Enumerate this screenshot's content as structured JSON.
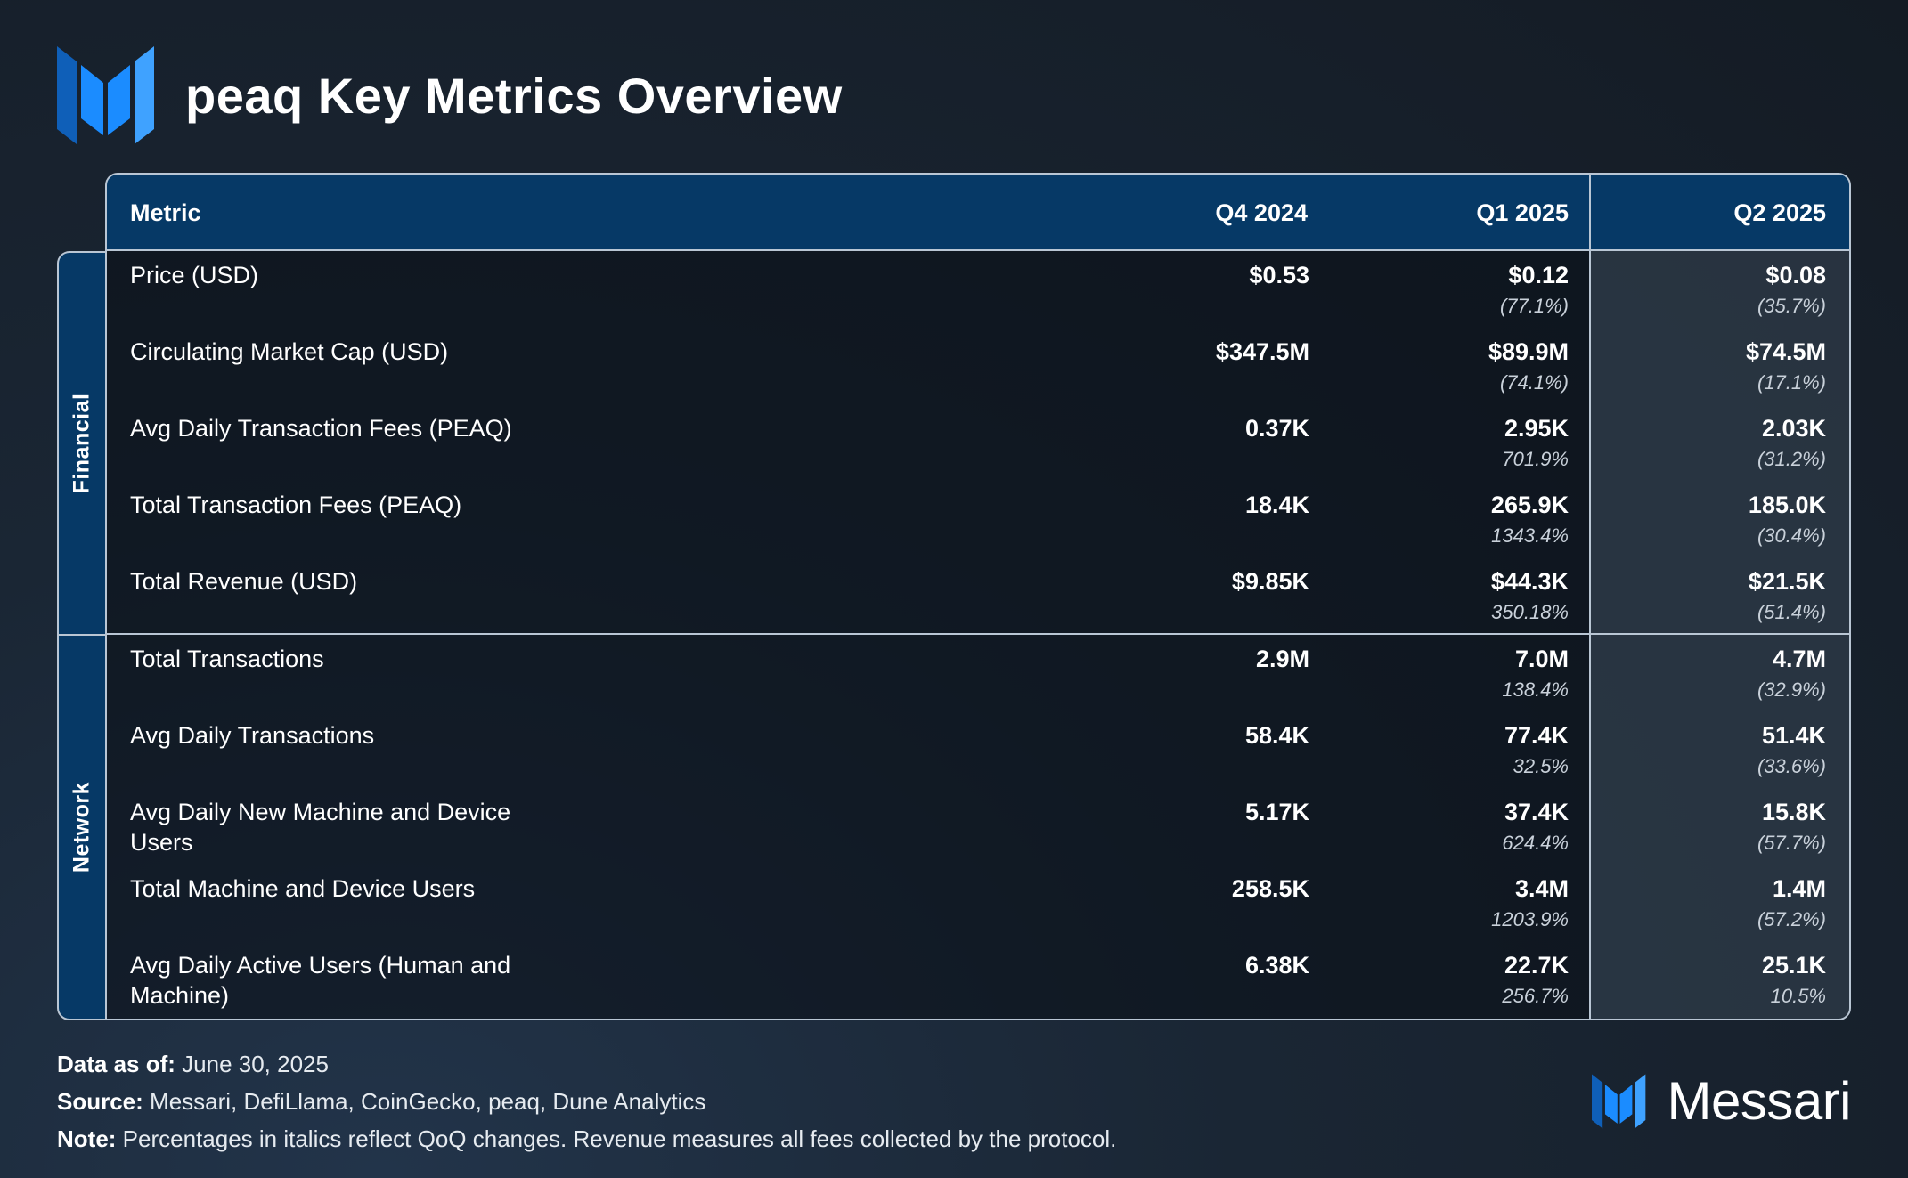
{
  "header": {
    "title": "peaq Key Metrics Overview",
    "logo_icon": "messari-m-logo-icon"
  },
  "colors": {
    "background": "#161e28",
    "header_fill": "#063966",
    "accent_blue": "#1b8cff",
    "border": "#b9c6d4",
    "change_text": "#c9d1da"
  },
  "chart_data": {
    "type": "table",
    "columns": [
      "Metric",
      "Q4 2024",
      "Q1 2025",
      "Q2 2025"
    ],
    "sections": [
      {
        "name": "Financial",
        "rows": [
          {
            "metric": "Price (USD)",
            "q4_2024": "$0.53",
            "q1_2025": "$0.12",
            "q1_2025_change": "(77.1%)",
            "q2_2025": "$0.08",
            "q2_2025_change": "(35.7%)"
          },
          {
            "metric": "Circulating Market Cap (USD)",
            "q4_2024": "$347.5M",
            "q1_2025": "$89.9M",
            "q1_2025_change": "(74.1%)",
            "q2_2025": "$74.5M",
            "q2_2025_change": "(17.1%)"
          },
          {
            "metric": "Avg Daily Transaction Fees (PEAQ)",
            "q4_2024": "0.37K",
            "q1_2025": "2.95K",
            "q1_2025_change": "701.9%",
            "q2_2025": "2.03K",
            "q2_2025_change": "(31.2%)"
          },
          {
            "metric": "Total Transaction Fees (PEAQ)",
            "q4_2024": "18.4K",
            "q1_2025": "265.9K",
            "q1_2025_change": "1343.4%",
            "q2_2025": "185.0K",
            "q2_2025_change": "(30.4%)"
          },
          {
            "metric": "Total Revenue (USD)",
            "q4_2024": "$9.85K",
            "q1_2025": "$44.3K",
            "q1_2025_change": "350.18%",
            "q2_2025": "$21.5K",
            "q2_2025_change": "(51.4%)"
          }
        ]
      },
      {
        "name": "Network",
        "rows": [
          {
            "metric": "Total Transactions",
            "q4_2024": "2.9M",
            "q1_2025": "7.0M",
            "q1_2025_change": "138.4%",
            "q2_2025": "4.7M",
            "q2_2025_change": "(32.9%)"
          },
          {
            "metric": "Avg Daily Transactions",
            "q4_2024": "58.4K",
            "q1_2025": "77.4K",
            "q1_2025_change": "32.5%",
            "q2_2025": "51.4K",
            "q2_2025_change": "(33.6%)"
          },
          {
            "metric": "Avg Daily New Machine and Device Users",
            "q4_2024": "5.17K",
            "q1_2025": "37.4K",
            "q1_2025_change": "624.4%",
            "q2_2025": "15.8K",
            "q2_2025_change": "(57.7%)"
          },
          {
            "metric": "Total Machine and Device Users",
            "q4_2024": "258.5K",
            "q1_2025": "3.4M",
            "q1_2025_change": "1203.9%",
            "q2_2025": "1.4M",
            "q2_2025_change": "(57.2%)"
          },
          {
            "metric": "Avg Daily Active Users (Human and Machine)",
            "q4_2024": "6.38K",
            "q1_2025": "22.7K",
            "q1_2025_change": "256.7%",
            "q2_2025": "25.1K",
            "q2_2025_change": "10.5%"
          }
        ]
      }
    ]
  },
  "footer": {
    "data_as_of_label": "Data as of:",
    "data_as_of_value": "June 30, 2025",
    "source_label": "Source:",
    "source_value": "Messari, DefiLlama, CoinGecko, peaq, Dune Analytics",
    "note_label": "Note:",
    "note_value": "Percentages in italics reflect QoQ changes. Revenue measures all fees collected by the protocol."
  },
  "brand": {
    "name": "Messari",
    "icon": "messari-m-logo-icon"
  }
}
